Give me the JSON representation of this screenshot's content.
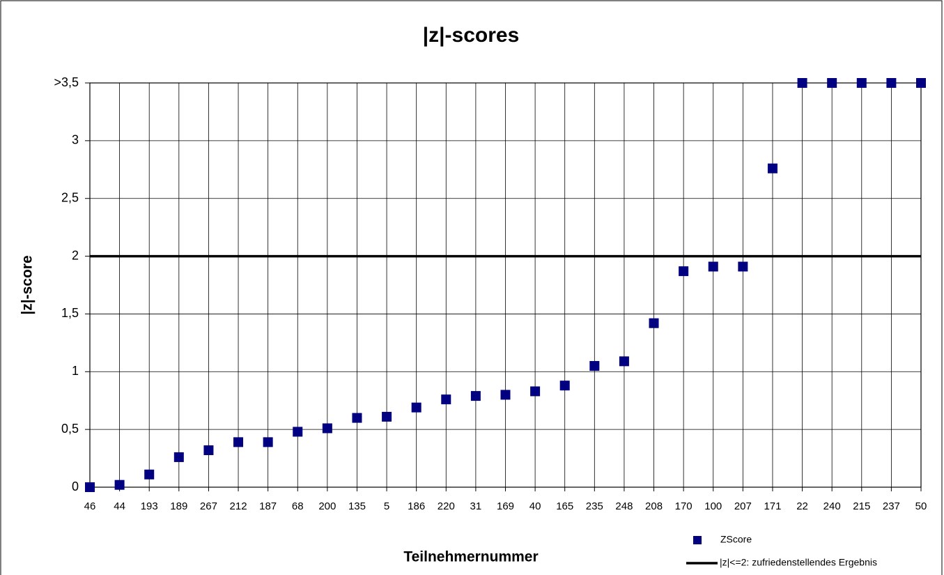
{
  "chart_data": {
    "type": "scatter",
    "title": "|z|-scores",
    "x_label": "Teilnehmernummer",
    "y_label": "|z|-score",
    "categories": [
      "46",
      "44",
      "193",
      "189",
      "267",
      "212",
      "187",
      "68",
      "200",
      "135",
      "5",
      "186",
      "220",
      "31",
      "169",
      "40",
      "165",
      "235",
      "248",
      "208",
      "170",
      "100",
      "207",
      "171",
      "22",
      "240",
      "215",
      "237",
      "50"
    ],
    "series": [
      {
        "name": "ZScore",
        "color": "#000080",
        "type": "scatter",
        "values": [
          0,
          0.02,
          0.11,
          0.26,
          0.32,
          0.39,
          0.39,
          0.48,
          0.51,
          0.6,
          0.61,
          0.69,
          0.76,
          0.79,
          0.8,
          0.83,
          0.88,
          1.05,
          1.09,
          1.42,
          1.87,
          1.91,
          1.91,
          2.76,
          3.5,
          3.5,
          3.5,
          3.5,
          3.5
        ]
      },
      {
        "name": "|z|<=2: zufriedenstellendes Ergebnis",
        "color": "#000000",
        "type": "line",
        "values": [
          2,
          2,
          2,
          2,
          2,
          2,
          2,
          2,
          2,
          2,
          2,
          2,
          2,
          2,
          2,
          2,
          2,
          2,
          2,
          2,
          2,
          2,
          2,
          2,
          2,
          2,
          2,
          2,
          2
        ]
      }
    ],
    "ylim": [
      0,
      3.5
    ],
    "yticks": [
      0,
      {
        "value": 0.5,
        "label": "0,5"
      },
      1,
      {
        "value": 1.5,
        "label": "1,5"
      },
      2,
      {
        "value": 2.5,
        "label": "2,5"
      },
      3,
      {
        "value": 3.5,
        "label": ">3,5"
      }
    ],
    "grid": true
  }
}
